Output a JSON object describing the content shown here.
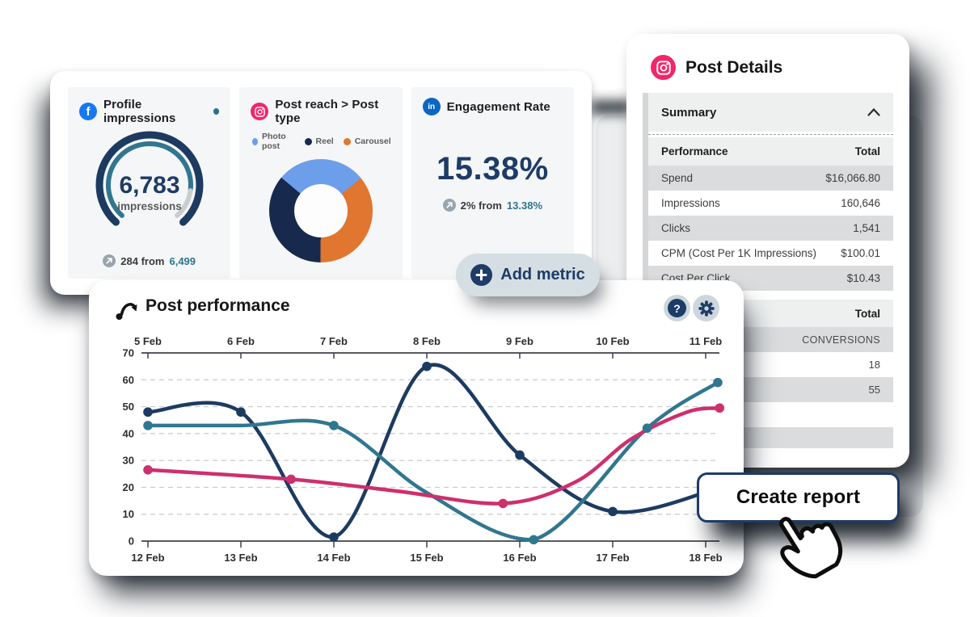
{
  "colors": {
    "navy": "#1d3b61",
    "teal": "#31768f",
    "pink": "#ce2f6d",
    "orange": "#e0762f",
    "photo_blue": "#6d9eea",
    "facebook_blue": "#1877f2",
    "linkedin_blue": "#0a66c2",
    "instagram_pink": "#f0276a",
    "pill_bg": "#d5dee2",
    "row_gray": "#dadcde",
    "header_gray": "#eef0f0",
    "card_gray": "#f5f6f7"
  },
  "metrics_panel": {
    "cards": [
      {
        "title": "Profile impressions",
        "delta_prefix": "284 from",
        "delta_value": "6,499"
      },
      {
        "title": "Post reach > Post type"
      },
      {
        "title": "Engagement Rate",
        "value": "15.38%",
        "delta_prefix": "2% from",
        "delta_value": "13.38%"
      }
    ],
    "add_metric_label": "Add metric"
  },
  "post_performance": {
    "title": "Post performance"
  },
  "post_details": {
    "title": "Post Details",
    "summary_label": "Summary",
    "performance_table": {
      "col_label": "Performance",
      "col_value": "Total",
      "rows": [
        {
          "label": "Spend",
          "value": "$16,066.80"
        },
        {
          "label": "Impressions",
          "value": "160,646"
        },
        {
          "label": "Clicks",
          "value": "1,541"
        },
        {
          "label": "CPM (Cost Per 1K Impressions)",
          "value": "$100.01"
        },
        {
          "label": "Cost Per Click",
          "value": "$10.43"
        }
      ]
    },
    "totals_table": {
      "header": "Total",
      "rows": [
        "CONVERSIONS",
        "18",
        "55"
      ]
    }
  },
  "create_report_label": "Create report",
  "chart_data": [
    {
      "type": "line",
      "title": "Post performance",
      "x_axis_top": [
        "5 Feb",
        "6 Feb",
        "7 Feb",
        "8 Feb",
        "9 Feb",
        "10 Feb",
        "11 Feb"
      ],
      "x_axis_bottom": [
        "12 Feb",
        "13 Feb",
        "14 Feb",
        "15 Feb",
        "16 Feb",
        "17 Feb",
        "18 Feb"
      ],
      "ylim": [
        0,
        70
      ],
      "y_ticks": [
        0,
        10,
        20,
        30,
        40,
        50,
        60,
        70
      ],
      "grid": "horizontal-dashed",
      "legend_position": "none",
      "series": [
        {
          "name": "series-navy",
          "color": "#1d3b61",
          "values_by_day": [
            48,
            48,
            1.5,
            65,
            32,
            11,
            20
          ],
          "points": [
            [
              0,
              48
            ],
            [
              1,
              48
            ],
            [
              2,
              1.5
            ],
            [
              3,
              65
            ],
            [
              4,
              32
            ],
            [
              5,
              11
            ],
            [
              6.17,
              20
            ]
          ],
          "dots": [
            [
              0,
              48
            ],
            [
              1,
              48
            ],
            [
              2,
              1.5
            ],
            [
              3,
              65
            ],
            [
              4,
              32
            ],
            [
              5,
              11
            ]
          ]
        },
        {
          "name": "series-teal",
          "color": "#31768f",
          "values_by_day": [
            43,
            43,
            43,
            19,
            0.5,
            30,
            58
          ],
          "points": [
            [
              0,
              43
            ],
            [
              1,
              43
            ],
            [
              2,
              43
            ],
            [
              3,
              18
            ],
            [
              4.15,
              0.5
            ],
            [
              5.37,
              42
            ],
            [
              6.13,
              59
            ]
          ],
          "dots": [
            [
              0,
              43
            ],
            [
              2,
              43
            ],
            [
              4.15,
              0.5
            ],
            [
              5.37,
              42
            ],
            [
              6.13,
              59
            ]
          ]
        },
        {
          "name": "series-pink",
          "color": "#ce2f6d",
          "values_by_day": [
            26.5,
            23,
            18.5,
            14,
            17,
            38,
            49.5
          ],
          "points": [
            [
              0,
              26.5
            ],
            [
              1.54,
              23
            ],
            [
              2.7,
              18.5
            ],
            [
              3.82,
              14
            ],
            [
              4.6,
              22
            ],
            [
              5.2,
              38
            ],
            [
              5.8,
              48
            ],
            [
              6.15,
              49.5
            ]
          ],
          "dots": [
            [
              0,
              26.5
            ],
            [
              1.54,
              23
            ],
            [
              3.82,
              14
            ],
            [
              6.15,
              49.5
            ]
          ]
        }
      ]
    },
    {
      "type": "pie",
      "subtype": "donut",
      "title": "Post reach > Post type",
      "segments": [
        {
          "label": "Photo post",
          "pct": 28,
          "color": "#6d9eea"
        },
        {
          "label": "Reel",
          "pct": 36,
          "color": "#17294d"
        },
        {
          "label": "Carousel",
          "pct": 36,
          "color": "#e0762f"
        }
      ],
      "clockwise_order_from_top": [
        "Photo post",
        "Carousel",
        "Reel"
      ]
    },
    {
      "type": "gauge",
      "title": "Profile impressions",
      "value_text": "6,783",
      "unit": "impressions",
      "progress_pct": 85,
      "delta_text": "284 from 6,499"
    }
  ]
}
